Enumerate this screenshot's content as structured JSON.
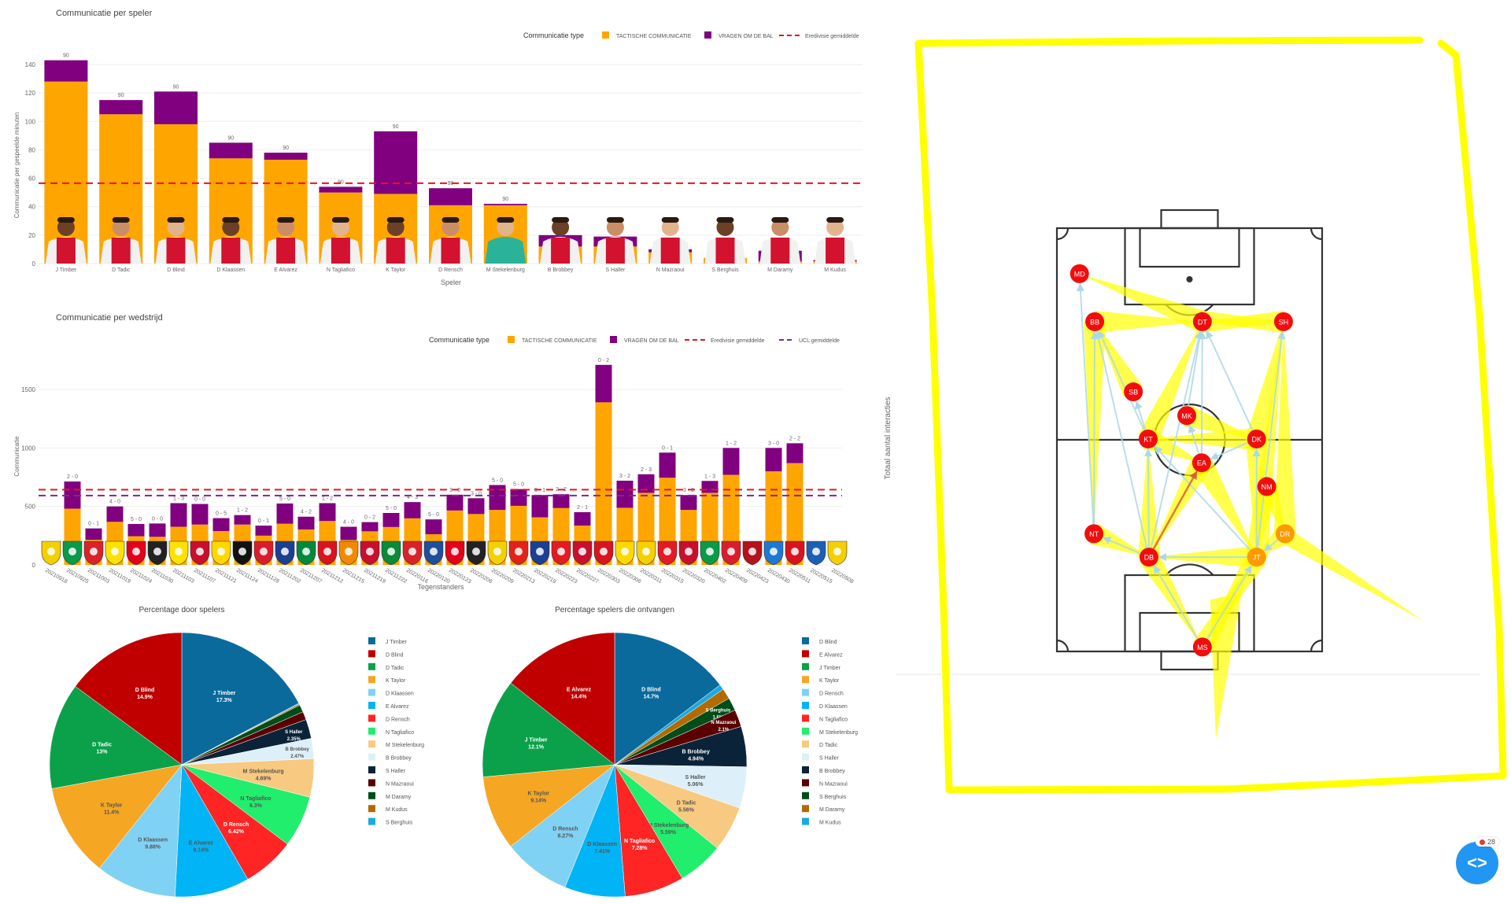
{
  "colors": {
    "tactical": "#ffa500",
    "ask_ball": "#800080",
    "eredivisie_avg": "#e8141e",
    "ucl_avg": "#7b2a8a",
    "annotation": "#ffff00",
    "widget": "#2196f3"
  },
  "legend": {
    "title": "Communicatie type",
    "tactical": "TACTISCHE COMMUNICATIE",
    "ask_ball": "VRAGEN OM DE BAL",
    "eredivisie_avg": "Eredivisie gemiddelde",
    "ucl_avg": "UCL gemiddelde"
  },
  "chart_data": [
    {
      "type": "bar",
      "stacked": true,
      "title": "Communicatie per speler",
      "xlabel": "Speler",
      "ylabel": "Communicatie per gespeelde minuten",
      "ylim": [
        0,
        148
      ],
      "yticks": [
        0,
        20,
        40,
        60,
        80,
        100,
        120,
        140
      ],
      "grid": true,
      "legend_position": "top-right",
      "categories": [
        "J Timber",
        "D Tadic",
        "D Blind",
        "D Klaassen",
        "E Alvarez",
        "N Tagliafico",
        "K Taylor",
        "D Rensch",
        "M Stekelenburg",
        "B Brobbey",
        "S Haller",
        "N Mazraoui",
        "S Berghuis",
        "M Daramy",
        "M Kudus"
      ],
      "series": [
        {
          "name": "TACTISCHE COMMUNICATIE",
          "values": [
            128,
            105,
            98,
            74,
            73,
            50,
            49,
            41,
            41,
            12,
            12,
            8,
            4,
            1.5,
            1.5
          ]
        },
        {
          "name": "VRAGEN OM DE BAL",
          "values": [
            15,
            10,
            23,
            11,
            5,
            4,
            44,
            12,
            1,
            8,
            7,
            2,
            0,
            7.5,
            1
          ]
        }
      ],
      "bar_labels": [
        "90",
        "90",
        "90",
        "90",
        "90",
        "90",
        "90",
        "90",
        "90",
        "90",
        "90",
        "90",
        "90",
        "90",
        "90"
      ],
      "reference_lines": [
        {
          "name": "Eredivisie gemiddelde",
          "value": 56.5
        }
      ]
    },
    {
      "type": "bar",
      "stacked": true,
      "title": "Communicatie per wedstrijd",
      "xlabel": "Tegenstanders",
      "ylabel": "Communicatie",
      "ylim": [
        0,
        1760
      ],
      "yticks": [
        0,
        500,
        1000,
        1500
      ],
      "grid": true,
      "legend_position": "top-right",
      "matches": [
        {
          "date": "20210918",
          "score": null,
          "tactical": null,
          "ask_ball": null,
          "logo_color": "#f5d000"
        },
        {
          "date": "20210925",
          "score": "2 - 0",
          "tactical": 481,
          "ask_ball": 232,
          "logo_color": "#0a9a4a"
        },
        {
          "date": "20211003",
          "score": "0 - 1",
          "tactical": 215,
          "ask_ball": 97,
          "logo_color": "#d8232a"
        },
        {
          "date": "20211019",
          "score": "4 - 0",
          "tactical": 368,
          "ask_ball": 132,
          "logo_color": "#fde100"
        },
        {
          "date": "20211024",
          "score": "5 - 0",
          "tactical": 245,
          "ask_ball": 105,
          "logo_color": "#e2001a"
        },
        {
          "date": "20211030",
          "score": "0 - 0",
          "tactical": 240,
          "ask_ball": 114,
          "logo_color": "#222222"
        },
        {
          "date": "20211103",
          "score": "1 - 3",
          "tactical": 326,
          "ask_ball": 202,
          "logo_color": "#fde100"
        },
        {
          "date": "20211107",
          "score": "0 - 0",
          "tactical": 345,
          "ask_ball": 176,
          "logo_color": "#c8102e"
        },
        {
          "date": "20211121",
          "score": "0 - 5",
          "tactical": 289,
          "ask_ball": 111,
          "logo_color": "#ffd800"
        },
        {
          "date": "20211124",
          "score": "1 - 2",
          "tactical": 345,
          "ask_ball": 81,
          "logo_color": "#111111"
        },
        {
          "date": "20211128",
          "score": "0 - 1",
          "tactical": 250,
          "ask_ball": 86,
          "logo_color": "#d81e2c"
        },
        {
          "date": "20211202",
          "score": "5 - 0",
          "tactical": 352,
          "ask_ball": 173,
          "logo_color": "#1c3f94"
        },
        {
          "date": "20211207",
          "score": "4 - 2",
          "tactical": 303,
          "ask_ball": 109,
          "logo_color": "#008a3e"
        },
        {
          "date": "20211212",
          "score": "1 - 2",
          "tactical": 375,
          "ask_ball": 153,
          "logo_color": "#d8141e"
        },
        {
          "date": "20211215",
          "score": "4 - 0",
          "tactical": 213,
          "ask_ball": 113,
          "logo_color": "#f18a00"
        },
        {
          "date": "20211219",
          "score": "0 - 2",
          "tactical": 287,
          "ask_ball": 79,
          "logo_color": "#c8102e"
        },
        {
          "date": "20211222",
          "score": "5 - 0",
          "tactical": 324,
          "ask_ball": 120,
          "logo_color": "#0b8a3a"
        },
        {
          "date": "20220116",
          "score": "4 - 3",
          "tactical": 398,
          "ask_ball": 139,
          "logo_color": "#d8232a"
        },
        {
          "date": "20220120",
          "score": "5 - 0",
          "tactical": 262,
          "ask_ball": 127,
          "logo_color": "#1f4e9c"
        },
        {
          "date": "20220123",
          "score": "1 - 0",
          "tactical": 465,
          "ask_ball": 135,
          "logo_color": "#e2001a"
        },
        {
          "date": "20220206",
          "score": "3 - 0",
          "tactical": 435,
          "ask_ball": 135,
          "logo_color": "#222222"
        },
        {
          "date": "20220209",
          "score": "5 - 0",
          "tactical": 470,
          "ask_ball": 213,
          "logo_color": "#f5d000"
        },
        {
          "date": "20220213",
          "score": "5 - 0",
          "tactical": 505,
          "ask_ball": 143,
          "logo_color": "#e2231a"
        },
        {
          "date": "20220219",
          "score": "0 - 1",
          "tactical": 407,
          "ask_ball": 190,
          "logo_color": "#1c3f94"
        },
        {
          "date": "20220223",
          "score": "2 - 2",
          "tactical": 486,
          "ask_ball": 118,
          "logo_color": "#e31b23"
        },
        {
          "date": "20220227",
          "score": "2 - 1",
          "tactical": 336,
          "ask_ball": 115,
          "logo_color": "#c8102e"
        },
        {
          "date": "20220303",
          "score": "0 - 2",
          "tactical": 1390,
          "ask_ball": 320,
          "logo_color": "#d8141e"
        },
        {
          "date": "20220306",
          "score": "3 - 2",
          "tactical": 488,
          "ask_ball": 232,
          "logo_color": "#ffd800"
        },
        {
          "date": "20220311",
          "score": "2 - 3",
          "tactical": 616,
          "ask_ball": 159,
          "logo_color": "#f5d000"
        },
        {
          "date": "20220315",
          "score": "0 - 1",
          "tactical": 745,
          "ask_ball": 215,
          "logo_color": "#e31b23"
        },
        {
          "date": "20220320",
          "score": "3 - 2",
          "tactical": 470,
          "ask_ball": 127,
          "logo_color": "#c8102e"
        },
        {
          "date": "20220402",
          "score": "1 - 3",
          "tactical": 616,
          "ask_ball": 102,
          "logo_color": "#0a9a4a"
        },
        {
          "date": "20220409",
          "score": "1 - 2",
          "tactical": 770,
          "ask_ball": 230,
          "logo_color": "#d81e2c"
        },
        {
          "date": "20220423",
          "score": null,
          "tactical": null,
          "ask_ball": null,
          "logo_color": "#b5121b"
        },
        {
          "date": "20220430",
          "score": "3 - 0",
          "tactical": 800,
          "ask_ball": 200,
          "logo_color": "#1f78d1"
        },
        {
          "date": "20220511",
          "score": "2 - 2",
          "tactical": 870,
          "ask_ball": 170,
          "logo_color": "#d8141e"
        },
        {
          "date": "20220515",
          "score": null,
          "tactical": null,
          "ask_ball": null,
          "logo_color": "#1c5fb3"
        },
        {
          "date": "20220508",
          "score": null,
          "tactical": null,
          "ask_ball": null,
          "logo_color": "#f5d000"
        }
      ],
      "reference_lines": [
        {
          "name": "Eredivisie gemiddelde",
          "value": 643
        },
        {
          "name": "UCL gemiddelde",
          "value": 593
        }
      ]
    },
    {
      "type": "pie",
      "title": "Percentage door spelers",
      "legend_position": "right",
      "slices": [
        {
          "label": "J Timber",
          "value": 17.3,
          "text": "17.3%",
          "color": "#0b6a9c"
        },
        {
          "label": "D Blind",
          "value": 14.9,
          "text": "14.9%",
          "color": "#c00000"
        },
        {
          "label": "D Tadic",
          "value": 13,
          "text": "13%",
          "color": "#0aa14a"
        },
        {
          "label": "K Taylor",
          "value": 11.4,
          "text": "11.4%",
          "color": "#f5a623"
        },
        {
          "label": "D Klaassen",
          "value": 9.88,
          "text": "9.88%",
          "color": "#80d2f4"
        },
        {
          "label": "E Alvarez",
          "value": 9.14,
          "text": "9.14%",
          "color": "#00b4f5"
        },
        {
          "label": "D Rensch",
          "value": 6.42,
          "text": "6.42%",
          "color": "#ff2525"
        },
        {
          "label": "N Tagliafico",
          "value": 6.3,
          "text": "6.3%",
          "color": "#20ee6c"
        },
        {
          "label": "M Stekelenburg",
          "value": 4.69,
          "text": "4.69%",
          "color": "#f8c980"
        },
        {
          "label": "B Brobbey",
          "value": 2.47,
          "text": "2.47%",
          "color": "#ddf0fa"
        },
        {
          "label": "S Haller",
          "value": 2.35,
          "text": "2.35%",
          "color": "#0b2338"
        },
        {
          "label": "N Mazraoui",
          "value": 1.0,
          "text": "",
          "color": "#5a0000"
        },
        {
          "label": "M Daramy",
          "value": 0.9,
          "text": "",
          "color": "#004d1a"
        },
        {
          "label": "M Kudus",
          "value": 0.15,
          "text": "",
          "color": "#b36b00"
        },
        {
          "label": "S Berghuis",
          "value": 0.1,
          "text": "",
          "color": "#1da9e0"
        }
      ]
    },
    {
      "type": "pie",
      "title": "Percentage spelers die ontvangen",
      "legend_position": "right",
      "slices": [
        {
          "label": "D Blind",
          "value": 14.7,
          "text": "14.7%",
          "color": "#0b6a9c"
        },
        {
          "label": "E Alvarez",
          "value": 14.4,
          "text": "14.4%",
          "color": "#c00000"
        },
        {
          "label": "J Timber",
          "value": 12.1,
          "text": "12.1%",
          "color": "#0aa14a"
        },
        {
          "label": "K Taylor",
          "value": 9.14,
          "text": "9.14%",
          "color": "#f5a623"
        },
        {
          "label": "D Rensch",
          "value": 8.27,
          "text": "8.27%",
          "color": "#80d2f4"
        },
        {
          "label": "D Klaassen",
          "value": 7.41,
          "text": "7.41%",
          "color": "#00b4f5"
        },
        {
          "label": "N Tagliafico",
          "value": 7.28,
          "text": "7.28%",
          "color": "#ff2525"
        },
        {
          "label": "M Stekelenburg",
          "value": 5.59,
          "text": "5.59%",
          "color": "#20ee6c"
        },
        {
          "label": "D Tadic",
          "value": 5.56,
          "text": "5.56%",
          "color": "#f8c980"
        },
        {
          "label": "S Haller",
          "value": 5.06,
          "text": "5.06%",
          "color": "#ddf0fa"
        },
        {
          "label": "B Brobbey",
          "value": 4.94,
          "text": "4.94%",
          "color": "#0b2338"
        },
        {
          "label": "N Mazraoui",
          "value": 2.1,
          "text": "2.1%",
          "color": "#5a0000"
        },
        {
          "label": "S Berghuis",
          "value": 1.6,
          "text": "1.6%",
          "color": "#004d1a"
        },
        {
          "label": "M Daramy",
          "value": 1.3,
          "text": "",
          "color": "#b36b00"
        },
        {
          "label": "M Kudus",
          "value": 0.64,
          "text": "",
          "color": "#1da9e0"
        }
      ]
    }
  ],
  "network": {
    "ylabel": "Totaal aantal interacties",
    "pitch_units": "m",
    "nodes": [
      {
        "id": "MD",
        "x": 5.8,
        "y": 11.3
      },
      {
        "id": "BB",
        "x": 9.7,
        "y": 23.2
      },
      {
        "id": "DT",
        "x": 37.3,
        "y": 23.2
      },
      {
        "id": "SH",
        "x": 58.1,
        "y": 23.2
      },
      {
        "id": "SB",
        "x": 19.6,
        "y": 40.6
      },
      {
        "id": "MK",
        "x": 33.3,
        "y": 46.5
      },
      {
        "id": "KT",
        "x": 23.4,
        "y": 52.3
      },
      {
        "id": "DK",
        "x": 51.2,
        "y": 52.3
      },
      {
        "id": "EA",
        "x": 37.1,
        "y": 58.2
      },
      {
        "id": "NM",
        "x": 53.8,
        "y": 64.1
      },
      {
        "id": "NT",
        "x": 9.5,
        "y": 75.8
      },
      {
        "id": "DR",
        "x": 58.5,
        "y": 75.8
      },
      {
        "id": "DB",
        "x": 23.6,
        "y": 81.6
      },
      {
        "id": "JT",
        "x": 51.2,
        "y": 81.6
      },
      {
        "id": "MS",
        "x": 37.3,
        "y": 103.9
      }
    ],
    "edges_strong": [
      [
        "BB",
        "DT"
      ],
      [
        "SH",
        "DT"
      ],
      [
        "DT",
        "MD"
      ],
      [
        "KT",
        "DT"
      ],
      [
        "DK",
        "SH"
      ],
      [
        "JT",
        "SH"
      ],
      [
        "DR",
        "SH"
      ],
      [
        "DB",
        "MS"
      ],
      [
        "JT",
        "MS"
      ],
      [
        "NT",
        "DB"
      ],
      [
        "EA",
        "JT"
      ],
      [
        "KT",
        "EA"
      ],
      [
        "DK",
        "JT"
      ],
      [
        "NM",
        "DR"
      ],
      [
        "MK",
        "DK"
      ],
      [
        "SB",
        "BB"
      ],
      [
        "DB",
        "KT"
      ],
      [
        "BB",
        "NT"
      ],
      [
        "DR",
        "JT"
      ],
      [
        "JT",
        "DB"
      ],
      [
        "EA",
        "DB"
      ],
      [
        "DK",
        "KT"
      ],
      [
        "NM",
        "JT"
      ],
      [
        "DT",
        "SH"
      ],
      [
        "MS",
        "JT"
      ]
    ],
    "edges_weak": [
      [
        "MS",
        "DB"
      ],
      [
        "MS",
        "JT"
      ],
      [
        "DB",
        "KT"
      ],
      [
        "DB",
        "NT"
      ],
      [
        "JT",
        "DK"
      ],
      [
        "KT",
        "BB"
      ],
      [
        "EA",
        "DT"
      ],
      [
        "DK",
        "DT"
      ],
      [
        "JT",
        "SH"
      ],
      [
        "NT",
        "BB"
      ],
      [
        "DB",
        "DT"
      ],
      [
        "MK",
        "DT"
      ],
      [
        "KT",
        "SB"
      ],
      [
        "JT",
        "DB"
      ],
      [
        "DR",
        "JT"
      ],
      [
        "EA",
        "MK"
      ],
      [
        "DB",
        "BB"
      ],
      [
        "NT",
        "MD"
      ],
      [
        "JT",
        "KT"
      ],
      [
        "DK",
        "EA"
      ]
    ],
    "edges_highlight": [
      [
        "DB",
        "EA"
      ]
    ]
  },
  "widget": {
    "badge_count": "28",
    "icon": "code-brackets-icon"
  }
}
